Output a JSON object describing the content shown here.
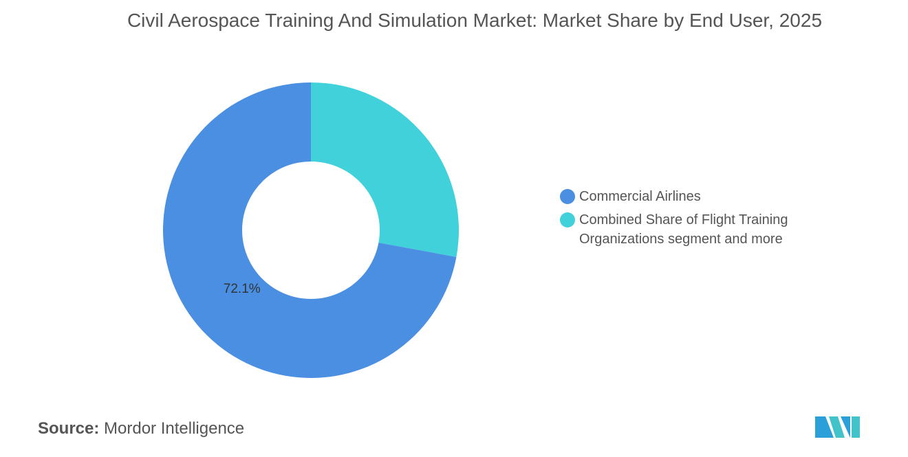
{
  "chart_data": {
    "type": "pie",
    "title": "Civil Aerospace Training And Simulation Market: Market Share by End User, 2025",
    "categories": [
      "Commercial Airlines",
      "Combined Share of Flight Training Organizations segment and more"
    ],
    "values": [
      72.1,
      27.9
    ],
    "value_labels": [
      "72.1%",
      null
    ],
    "colors": [
      "#4a8fe2",
      "#40d1db"
    ],
    "donut": true
  },
  "source_label": "Source:",
  "source": "Mordor Intelligence"
}
